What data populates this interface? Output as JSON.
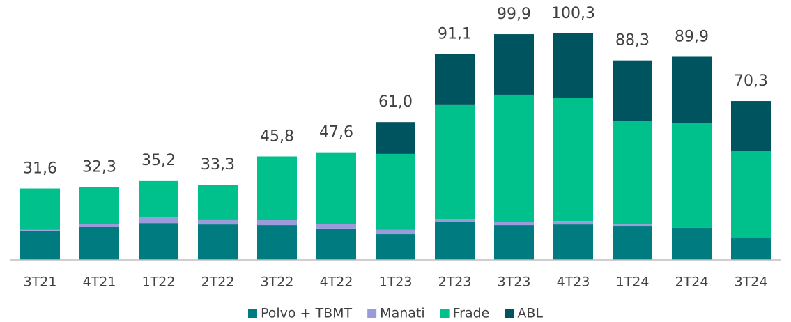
{
  "chart_data": {
    "type": "stacked_bar",
    "categories": [
      "3T21",
      "4T21",
      "1T22",
      "2T22",
      "3T22",
      "4T22",
      "1T23",
      "2T23",
      "3T23",
      "4T23",
      "1T24",
      "2T24",
      "3T24"
    ],
    "series": [
      {
        "name": "Polvo + TBMT",
        "color": "#007b80",
        "values": [
          13.0,
          14.5,
          16.3,
          15.7,
          15.4,
          13.9,
          11.4,
          16.7,
          15.4,
          15.7,
          15.1,
          14.2,
          9.6
        ]
      },
      {
        "name": "Manati",
        "color": "#9b9bdc",
        "values": [
          0.3,
          1.5,
          2.5,
          2.2,
          2.2,
          1.9,
          1.9,
          1.5,
          1.5,
          1.5,
          0.6,
          0,
          0
        ]
      },
      {
        "name": "Frade",
        "color": "#00c08b",
        "values": [
          18.3,
          16.3,
          16.4,
          15.4,
          28.2,
          31.8,
          33.6,
          50.6,
          56.2,
          54.6,
          45.7,
          46.5,
          38.8
        ]
      },
      {
        "name": "ABL",
        "color": "#00545f",
        "values": [
          0,
          0,
          0,
          0,
          0,
          0,
          14.1,
          22.3,
          26.8,
          28.5,
          26.9,
          29.2,
          21.9
        ]
      }
    ],
    "totals": [
      31.6,
      32.3,
      35.2,
      33.3,
      45.8,
      47.6,
      61.0,
      91.1,
      99.9,
      100.3,
      88.3,
      89.9,
      70.3
    ],
    "total_labels": [
      "31,6",
      "32,3",
      "35,2",
      "33,3",
      "45,8",
      "47,6",
      "61,0",
      "91,1",
      "99,9",
      "100,3",
      "88,3",
      "89,9",
      "70,3"
    ],
    "ylim": [
      0,
      110
    ],
    "legend": "bottom"
  }
}
